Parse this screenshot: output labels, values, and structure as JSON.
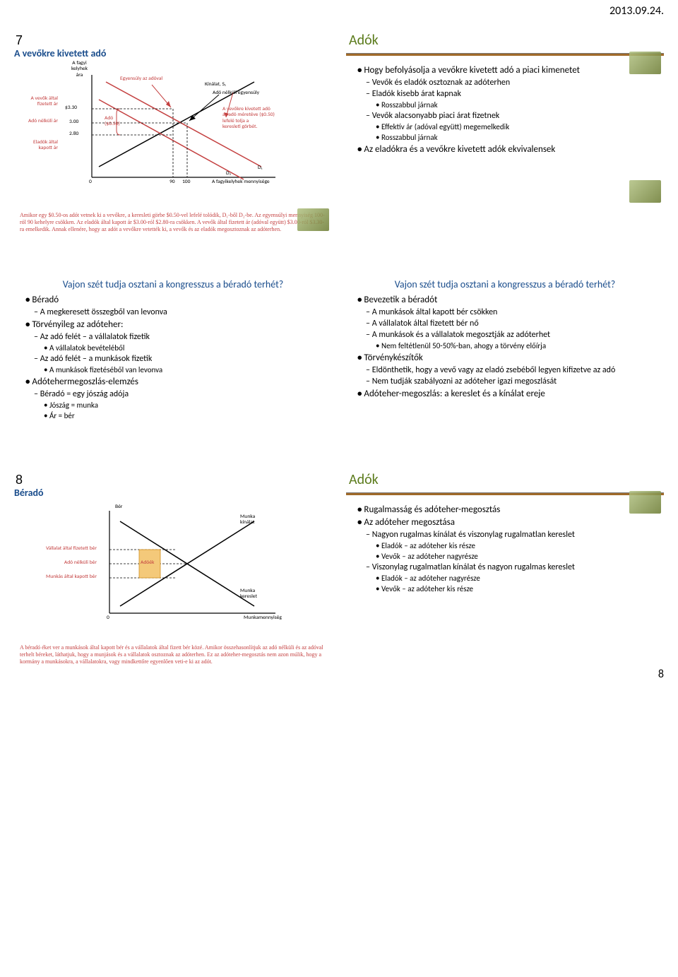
{
  "page": {
    "date": "2013.09.24.",
    "number": "8"
  },
  "slide1": {
    "corner_num": "7",
    "title": "A vevőkre kivetett adó",
    "y_axis_label": "A fagyi\nkelyhek\nára",
    "labels": {
      "eq_with_tax": "Egyensúly az adóval",
      "supply": "Kínálat, S₁",
      "eq_no_tax": "Adó nélküli egyensúly",
      "tax_note": "A vevőkre kivetett adó\naz adó méretéve ($0.50)\nlefelé tolja a\nkeresleti görbét.",
      "price_paid": "A vevők által\nfizetett ár",
      "price_notax": "Adó nélküli ár",
      "price_seller": "Eladók által\nkapott ár",
      "tax": "Adó\n($0.50)",
      "d1": "D₁",
      "d2": "D₂",
      "x_axis": "A fagyikelyhek mennyisége"
    },
    "prices": {
      "p1": "$3.30",
      "p2": "3.00",
      "p3": "2.80"
    },
    "xticks": {
      "zero": "0",
      "q1": "90",
      "q2": "100"
    },
    "caption": "Amikor egy $0.50-os adót vetnek ki a vevőkre, a keresleti görbe $0.50-vel lefelé tolódik, D₁-ből D₂-be. Az egyensúlyi mennyiség 100-ról 90 kehelyre csökken. Az eladók által kapott ár $3.00-ról $2.80-ra csökken. A vevők által fizetett ár (adóval együtt) $3.00-ról $3.30-ra emelkedik. Annak ellenére, hogy az adót a vevőkre vetették ki, a vevők és az eladók megosztoznak az adóterhen."
  },
  "slide2": {
    "title": "Adók",
    "b1": "Hogy befolyásolja a vevőkre kivetett adó a piaci kimenetet",
    "s1a": "Vevők és eladók osztoznak az adóterhen",
    "s1b": "Eladók kisebb árat kapnak",
    "s1b_1": "Rosszabbul járnak",
    "s1c": "Vevők alacsonyabb piaci árat fizetnek",
    "s1c_1": "Effektív ár (adóval együtt) megemelkedik",
    "s1c_2": "Rosszabbul járnak",
    "b2": "Az eladókra és a vevőkre kivetett adók ekvivalensek"
  },
  "slide3": {
    "title": "Vajon szét tudja osztani a kongresszus a béradó terhét?",
    "b1": "Béradó",
    "s1a": "A megkeresett összegből van levonva",
    "b2": "Törvényileg az adóteher:",
    "s2a": "Az adó felét – a vállalatok fizetik",
    "s2a_1": "A vállalatok bevételéből",
    "s2b": "Az adó felét – a munkások fizetik",
    "s2b_1": "A munkások fizetéséből van levonva",
    "b3": "Adótehermegoszlás-elemzés",
    "s3a": "Béradó = egy jószág adója",
    "s3a_1": "Jószág = munka",
    "s3a_2": "Ár = bér"
  },
  "slide4": {
    "title": "Vajon szét tudja osztani a kongresszus a béradó terhét?",
    "b1": "Bevezetik a béradót",
    "s1a": "A munkások által kapott bér csökken",
    "s1b": "A vállalatok által fizetett bér nő",
    "s1c": "A munkások és a vállalatok megosztják az adóterhet",
    "s1c_1": "Nem feltétlenül 50-50%-ban, ahogy a törvény előírja",
    "b2": "Törvénykészítők",
    "s2a": "Eldönthetik, hogy a vevő vagy az eladó zsebéből legyen kifizetve az adó",
    "s2b": "Nem tudják szabályozni az adóteher igazi megoszlását",
    "b3": "Adóteher-megoszlás: a kereslet és a kínálat ereje"
  },
  "slide5": {
    "corner_num": "8",
    "title": "Béradó",
    "labels": {
      "bér": "Bér",
      "supply": "Munka\nkínálat",
      "demand": "Munka\nkereslet",
      "x_axis": "Munkamennyiség",
      "w_firm": "Vállalat által fizetett bér",
      "w_notax": "Adó nélküli bér",
      "w_worker": "Munkás által kapott bér",
      "wedge": "Adóék"
    },
    "xticks": {
      "zero": "0"
    },
    "caption": "A béradó éket ver a munkások által kapott bér és a vállalatok által fizett bér közé. Amikor összehasonlítjuk az adó nélküli és az adóval terhelt béreket, láthatjuk, hogy a munjások és a vállalatok osztoznak az adóterhen. Ez az adóteher-megosztás nem azon múlik, hogy a kormány a munkásokra, a vállalatokra, vagy mindkettőre egyenlően veti-e ki az adót."
  },
  "slide6": {
    "title": "Adók",
    "b1": "Rugalmasság és adóteher-megosztás",
    "b2": "Az adóteher megosztása",
    "s2a": "Nagyon rugalmas kínálat és viszonylag rugalmatlan kereslet",
    "s2a_1": "Eladók – az adóteher kis része",
    "s2a_2": "Vevők – az adóteher nagyrésze",
    "s2b": "Viszonylag rugalmatlan kínálat és nagyon rugalmas kereslet",
    "s2b_1": "Eladók – az adóteher nagyrésze",
    "s2b_2": "Vevők – az adóteher kis része"
  }
}
